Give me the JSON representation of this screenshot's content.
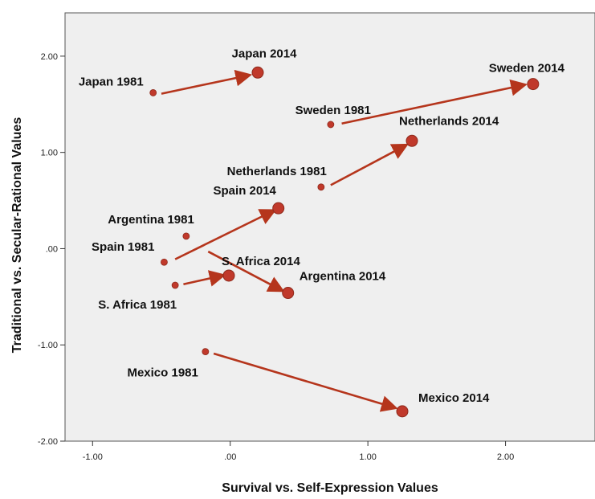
{
  "chart_data": {
    "type": "scatter",
    "title": "",
    "xlabel": "Survival vs. Self-Expression Values",
    "ylabel": "Traditional vs. Secular-Rational Values",
    "xlim": [
      -1.2,
      2.65
    ],
    "ylim": [
      -2.0,
      2.45
    ],
    "x_ticks": [
      {
        "value": -1.0,
        "label": "-1.00"
      },
      {
        "value": 0.0,
        "label": ".00"
      },
      {
        "value": 1.0,
        "label": "1.00"
      },
      {
        "value": 2.0,
        "label": "2.00"
      }
    ],
    "y_ticks": [
      {
        "value": 2.0,
        "label": "2.00"
      },
      {
        "value": 1.0,
        "label": "1.00"
      },
      {
        "value": 0.0,
        "label": ".00"
      },
      {
        "value": -1.0,
        "label": "-1.00"
      },
      {
        "value": -2.0,
        "label": "-2.00"
      }
    ],
    "grid": false,
    "colors": {
      "plot_background": "#efefef",
      "point": "#c0392b",
      "point_outline": "#8e2a1c",
      "arrow": "#b5351c"
    },
    "points_1981": [
      {
        "label": "Japan 1981",
        "x": -0.56,
        "y": 1.62
      },
      {
        "label": "Sweden 1981",
        "x": 0.73,
        "y": 1.29
      },
      {
        "label": "Netherlands 1981",
        "x": 0.66,
        "y": 0.64
      },
      {
        "label": "Argentina 1981",
        "x": -0.32,
        "y": 0.13
      },
      {
        "label": "Spain 1981",
        "x": -0.48,
        "y": -0.14
      },
      {
        "label": "S. Africa 1981",
        "x": -0.4,
        "y": -0.38
      },
      {
        "label": "Mexico 1981",
        "x": -0.18,
        "y": -1.07
      }
    ],
    "points_2014": [
      {
        "label": "Japan 2014",
        "x": 0.2,
        "y": 1.83
      },
      {
        "label": "Sweden 2014",
        "x": 2.2,
        "y": 1.71
      },
      {
        "label": "Netherlands 2014",
        "x": 1.32,
        "y": 1.12
      },
      {
        "label": "Spain 2014",
        "x": 0.35,
        "y": 0.42
      },
      {
        "label": "S. Africa 2014",
        "x": -0.01,
        "y": -0.28
      },
      {
        "label": "Argentina 2014",
        "x": 0.42,
        "y": -0.46
      },
      {
        "label": "Mexico 2014",
        "x": 1.25,
        "y": -1.69
      }
    ],
    "arrows": [
      {
        "from": [
          -0.5,
          1.61
        ],
        "to": [
          0.13,
          1.8
        ]
      },
      {
        "from": [
          0.81,
          1.3
        ],
        "to": [
          2.13,
          1.7
        ]
      },
      {
        "from": [
          0.73,
          0.66
        ],
        "to": [
          1.27,
          1.07
        ]
      },
      {
        "from": [
          -0.4,
          -0.11
        ],
        "to": [
          0.31,
          0.39
        ]
      },
      {
        "from": [
          -0.34,
          -0.37
        ],
        "to": [
          -0.06,
          -0.28
        ]
      },
      {
        "from": [
          -0.16,
          -0.03
        ],
        "to": [
          0.37,
          -0.43
        ]
      },
      {
        "from": [
          -0.12,
          -1.09
        ],
        "to": [
          1.19,
          -1.65
        ]
      }
    ]
  }
}
